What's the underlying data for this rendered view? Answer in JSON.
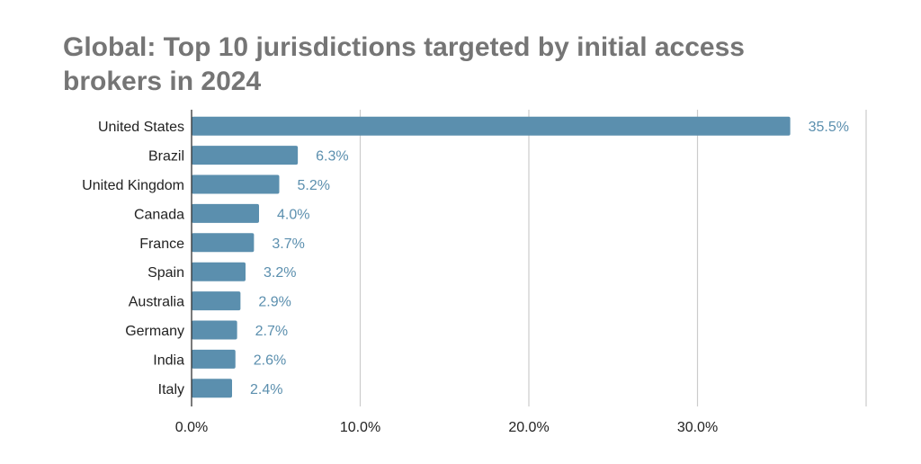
{
  "chart_data": {
    "type": "bar",
    "orientation": "horizontal",
    "title": "Global: Top 10 jurisdictions targeted by initial access brokers in 2024",
    "categories": [
      "United States",
      "Brazil",
      "United Kingdom",
      "Canada",
      "France",
      "Spain",
      "Australia",
      "Germany",
      "India",
      "Italy"
    ],
    "values": [
      35.5,
      6.3,
      5.2,
      4.0,
      3.7,
      3.2,
      2.9,
      2.7,
      2.6,
      2.4
    ],
    "data_labels": [
      "35.5%",
      "6.3%",
      "5.2%",
      "4.0%",
      "3.7%",
      "3.2%",
      "2.9%",
      "2.7%",
      "2.6%",
      "2.4%"
    ],
    "x_ticks": [
      0,
      10,
      20,
      30
    ],
    "x_tick_labels": [
      "0.0%",
      "10.0%",
      "20.0%",
      "30.0%"
    ],
    "xlim": [
      0,
      40
    ],
    "grid": "vertical",
    "legend": "none",
    "colors": {
      "bar": "#5b8fae",
      "label": "#5b8fae",
      "grid": "#cccccc",
      "axis": "#333333",
      "title": "#757575"
    }
  }
}
